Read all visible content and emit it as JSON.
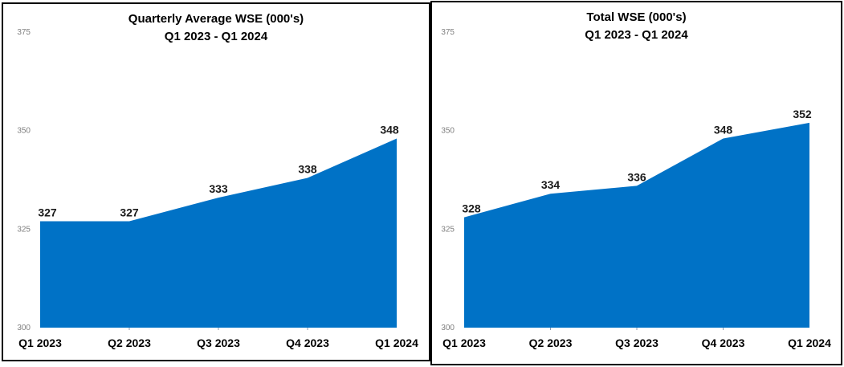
{
  "window": {
    "background": "#ffffff",
    "panel_border_color": "#000000"
  },
  "colors": {
    "area_fill": "#0072C6",
    "y_tick_label": "#808080",
    "data_label": "#1a1a1a",
    "category_label": "#000000",
    "axis_tick_mark": "#8c9bb0"
  },
  "chart_data": [
    {
      "type": "area",
      "title": "Quarterly Average WSE (000's) Q1 2023 - Q1 2024",
      "title_lines": [
        "Quarterly Average WSE (000's)",
        "Q1 2023 - Q1 2024"
      ],
      "categories": [
        "Q1 2023",
        "Q2 2023",
        "Q3 2023",
        "Q4 2023",
        "Q1 2024"
      ],
      "values": [
        327,
        327,
        333,
        338,
        348
      ],
      "xlabel": "",
      "ylabel": "",
      "ylim": [
        300,
        375
      ],
      "yticks": [
        300,
        325,
        350,
        375
      ],
      "grid": false,
      "legend": false,
      "data_labels_shown": true,
      "fill_color": "#0072C6"
    },
    {
      "type": "area",
      "title": "Total WSE (000's) Q1 2023 - Q1 2024",
      "title_lines": [
        "Total WSE (000's)",
        "Q1 2023 - Q1 2024"
      ],
      "categories": [
        "Q1 2023",
        "Q2 2023",
        "Q3 2023",
        "Q4 2023",
        "Q1 2024"
      ],
      "values": [
        328,
        334,
        336,
        348,
        352
      ],
      "xlabel": "",
      "ylabel": "",
      "ylim": [
        300,
        375
      ],
      "yticks": [
        300,
        325,
        350,
        375
      ],
      "grid": false,
      "legend": false,
      "data_labels_shown": true,
      "fill_color": "#0072C6"
    }
  ]
}
